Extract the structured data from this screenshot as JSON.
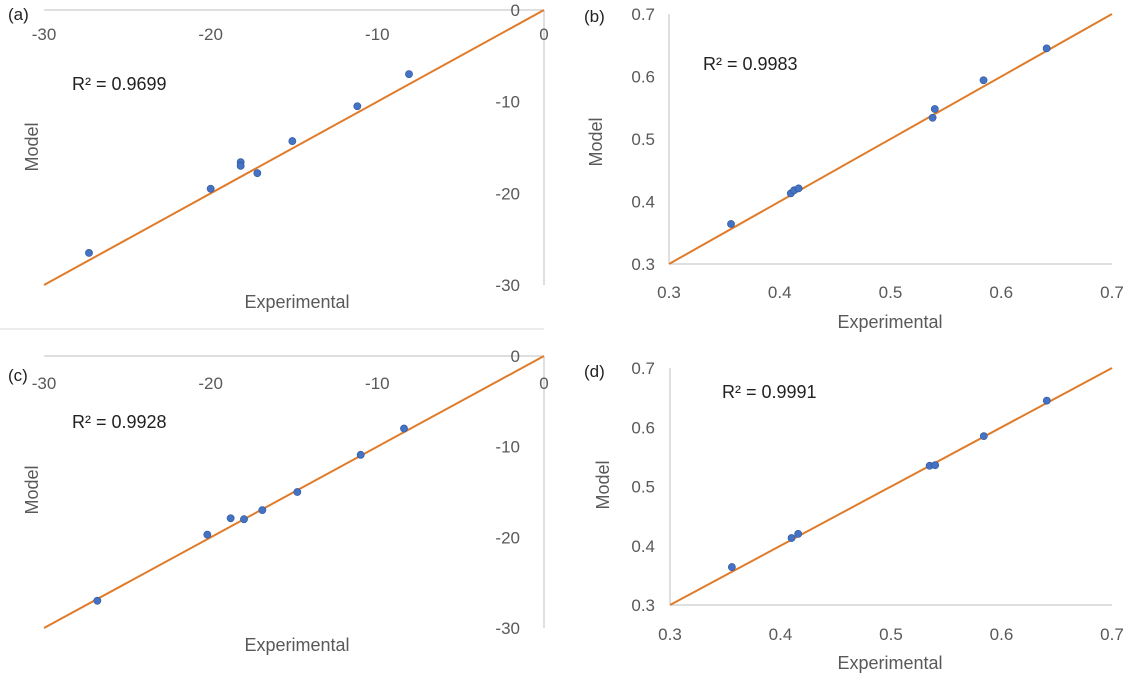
{
  "figure": {
    "colors": {
      "trend": "#e07b2a",
      "points": "#4472c4",
      "axis": "#bfbfbf",
      "text": "#595959"
    }
  },
  "chart_data": [
    {
      "panel": "(a)",
      "type": "scatter",
      "xlabel": "Experimental",
      "ylabel": "Model",
      "xlim": [
        -30,
        0
      ],
      "ylim": [
        -30,
        0
      ],
      "xticks": [
        "-30",
        "-20",
        "-10",
        "0"
      ],
      "yticks": [
        "0",
        "-10",
        "-20",
        "-30"
      ],
      "annotation": "R² = 0.9699",
      "trendline": {
        "x": [
          -30,
          0
        ],
        "y": [
          -30,
          0
        ]
      },
      "points": {
        "x": [
          -27.3,
          -20.0,
          -18.2,
          -18.2,
          -17.2,
          -15.1,
          -11.2,
          -8.1
        ],
        "y": [
          -26.5,
          -19.5,
          -16.6,
          -17.0,
          -17.8,
          -14.3,
          -10.5,
          -7.0
        ]
      }
    },
    {
      "panel": "(b)",
      "type": "scatter",
      "xlabel": "Experimental",
      "ylabel": "Model",
      "xlim": [
        0.3,
        0.7
      ],
      "ylim": [
        0.3,
        0.7
      ],
      "xticks": [
        "0.3",
        "0.4",
        "0.5",
        "0.6",
        "0.7"
      ],
      "yticks": [
        "0.7",
        "0.6",
        "0.5",
        "0.4",
        "0.3"
      ],
      "annotation": "R² = 0.9983",
      "trendline": {
        "x": [
          0.3,
          0.7
        ],
        "y": [
          0.3,
          0.7
        ]
      },
      "points": {
        "x": [
          0.356,
          0.41,
          0.413,
          0.417,
          0.538,
          0.54,
          0.584,
          0.641
        ],
        "y": [
          0.364,
          0.413,
          0.418,
          0.421,
          0.534,
          0.548,
          0.594,
          0.645
        ]
      }
    },
    {
      "panel": "(c)",
      "type": "scatter",
      "xlabel": "Experimental",
      "ylabel": "Model",
      "xlim": [
        -30,
        0
      ],
      "ylim": [
        -30,
        0
      ],
      "xticks": [
        "-30",
        "-20",
        "-10",
        "0"
      ],
      "yticks": [
        "0",
        "-10",
        "-20",
        "-30"
      ],
      "annotation": "R² = 0.9928",
      "trendline": {
        "x": [
          -30,
          0
        ],
        "y": [
          -30,
          0
        ]
      },
      "points": {
        "x": [
          -26.8,
          -20.2,
          -18.8,
          -18.0,
          -16.9,
          -14.8,
          -11.0,
          -8.4
        ],
        "y": [
          -27.0,
          -19.7,
          -17.9,
          -18.0,
          -17.0,
          -15.0,
          -10.9,
          -8.0
        ]
      }
    },
    {
      "panel": "(d)",
      "type": "scatter",
      "xlabel": "Experimental",
      "ylabel": "Model",
      "xlim": [
        0.3,
        0.7
      ],
      "ylim": [
        0.3,
        0.7
      ],
      "xticks": [
        "0.3",
        "0.4",
        "0.5",
        "0.6",
        "0.7"
      ],
      "yticks": [
        "0.7",
        "0.6",
        "0.5",
        "0.4",
        "0.3"
      ],
      "annotation": "R² = 0.9991",
      "trendline": {
        "x": [
          0.3,
          0.7
        ],
        "y": [
          0.3,
          0.7
        ]
      },
      "points": {
        "x": [
          0.356,
          0.41,
          0.416,
          0.535,
          0.54,
          0.584,
          0.641
        ],
        "y": [
          0.364,
          0.413,
          0.42,
          0.535,
          0.536,
          0.585,
          0.645
        ]
      }
    }
  ]
}
